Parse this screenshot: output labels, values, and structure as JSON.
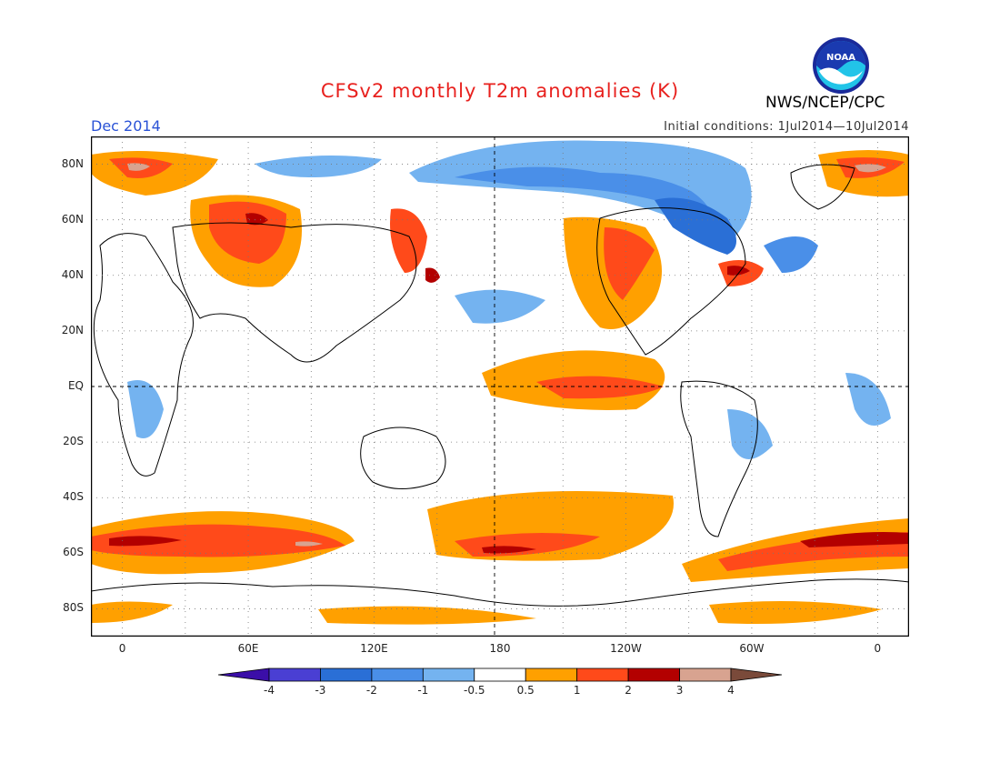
{
  "header": {
    "title": "CFSv2 monthly T2m anomalies (K)",
    "agency": "NWS/NCEP/CPC",
    "logo_text": "NOAA",
    "target_month": "Dec 2014",
    "initial_conditions": "Initial conditions: 1Jul2014—10Jul2014"
  },
  "map": {
    "lat_labels": [
      "80N",
      "60N",
      "40N",
      "20N",
      "EQ",
      "20S",
      "40S",
      "60S",
      "80S"
    ],
    "lon_labels": [
      "0",
      "60E",
      "120E",
      "180",
      "120W",
      "60W",
      "0"
    ],
    "lat_values": [
      80,
      60,
      40,
      20,
      0,
      -20,
      -40,
      -60,
      -80
    ],
    "lon_values": [
      0,
      60,
      120,
      180,
      240,
      300,
      360
    ],
    "lon_range": [
      -15,
      375
    ],
    "lat_range": [
      -90,
      90
    ]
  },
  "colorbar": {
    "labels": [
      "-4",
      "-3",
      "-2",
      "-1",
      "-0.5",
      "0.5",
      "1",
      "2",
      "3",
      "4"
    ],
    "colors": [
      "#3b0ea8",
      "#4a3fd3",
      "#2a6fd6",
      "#4a8fe8",
      "#74b3f0",
      "#ffffff",
      "#ffa000",
      "#ff4a1a",
      "#b30000",
      "#d8a390",
      "#7a4a3a"
    ]
  },
  "colors": {
    "title": "#e8211e",
    "month": "#2a52d6",
    "warm_light": "#ffa000",
    "warm": "#ff4a1a",
    "warm_strong": "#b30000",
    "warm_extreme": "#d8a390",
    "cool_light": "#74b3f0",
    "cool": "#4a8fe8",
    "cool_strong": "#2a6fd6",
    "cool_extreme": "#4a3fd3"
  }
}
